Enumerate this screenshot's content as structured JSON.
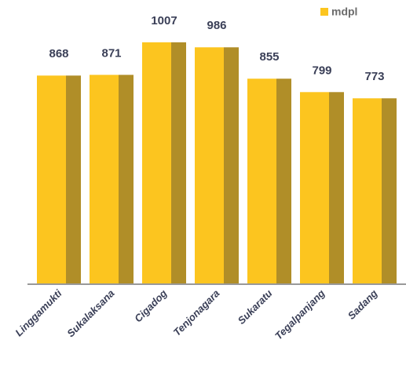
{
  "chart_data": {
    "type": "bar",
    "categories": [
      "Linggamukti",
      "Sukalaksana",
      "Cigadog",
      "Tenjonagara",
      "Sukaratu",
      "Tegalpanjang",
      "Sadang"
    ],
    "series": [
      {
        "name": "mdpl",
        "color": "#fcc51f",
        "shade_color": "#b08e28",
        "values": [
          868,
          871,
          1007,
          986,
          855,
          799,
          773
        ]
      }
    ],
    "ylim": [
      0,
      1000
    ],
    "legend": "top-right"
  }
}
